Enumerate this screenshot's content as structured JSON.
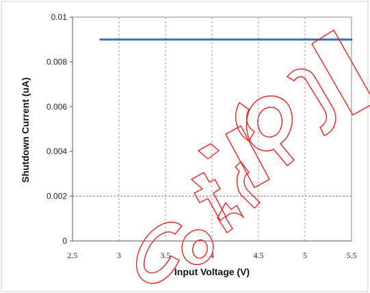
{
  "chart_data": {
    "type": "line",
    "xlabel": "Input Voltage (V)",
    "ylabel": "Shutdown Current (uA)",
    "xlim": [
      2.5,
      5.5
    ],
    "ylim": [
      0,
      0.01
    ],
    "x_ticks": [
      "2.5",
      "3",
      "3.5",
      "4",
      "4.5",
      "5",
      "5.5"
    ],
    "y_ticks": [
      "0",
      "0.002",
      "0.004",
      "0.006",
      "0.008",
      "0.01"
    ],
    "grid": "vertical dashed gridlines; dashed horizontal line at 0.002",
    "series": [
      {
        "x": [
          2.8,
          5.5
        ],
        "values": [
          0.009,
          0.009
        ],
        "color": "#3b6fb0"
      }
    ],
    "watermark": "Confidential"
  }
}
